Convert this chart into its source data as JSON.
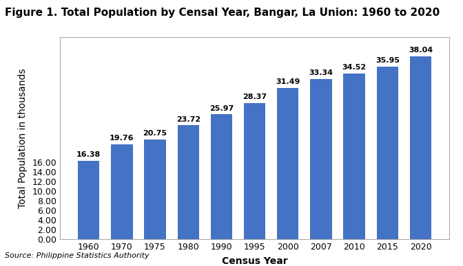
{
  "title": "Figure 1. Total Population by Censal Year, Bangar, La Union: 1960 to 2020",
  "xlabel": "Census Year",
  "ylabel": "Total Population in thousands",
  "source": "Source: Philippine Statistics Authority",
  "categories": [
    "1960",
    "1970",
    "1975",
    "1980",
    "1990",
    "1995",
    "2000",
    "2007",
    "2010",
    "2015",
    "2020"
  ],
  "values": [
    16.38,
    19.76,
    20.75,
    23.72,
    25.97,
    28.37,
    31.49,
    33.34,
    34.52,
    35.95,
    38.04
  ],
  "bar_color": "#4472C4",
  "ylim": [
    0,
    42
  ],
  "yticks": [
    0,
    2,
    4,
    6,
    8,
    10,
    12,
    14,
    16
  ],
  "ytick_labels": [
    "0.00",
    "2.00",
    "4.00",
    "6.00",
    "8.00",
    "10.00",
    "12.00",
    "14.00",
    "16.00"
  ],
  "title_fontsize": 11,
  "axis_label_fontsize": 10,
  "tick_fontsize": 9,
  "bar_label_fontsize": 8,
  "source_fontsize": 8,
  "background_color": "#ffffff",
  "plot_bg_color": "#ffffff"
}
